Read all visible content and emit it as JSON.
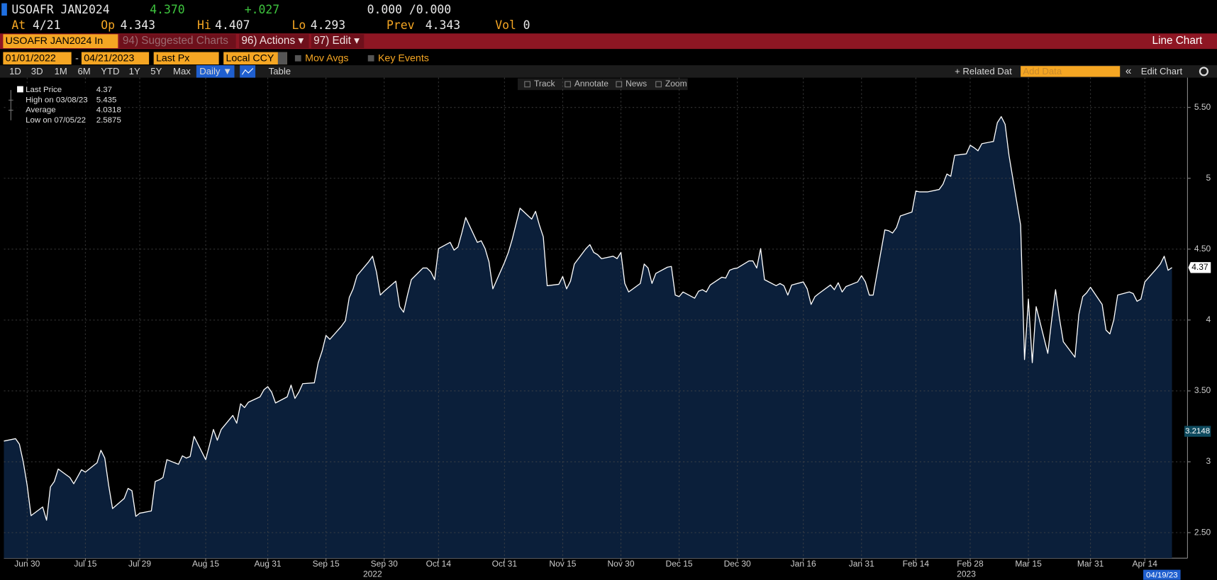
{
  "header": {
    "ticker": "USOAFR JAN2024",
    "last": "4.370",
    "change": "+.027",
    "bid_ask": "0.000 /0.000",
    "at_label": "At",
    "at": "4/21",
    "open_label": "Op",
    "open": "4.343",
    "high_label": "Hi",
    "high": "4.407",
    "low_label": "Lo",
    "low": "4.293",
    "prev_label": "Prev",
    "prev": "4.343",
    "volume_label": "Vol",
    "volume": "0"
  },
  "menu": {
    "security": "USOAFR JAN2024 In",
    "suggested": "94) Suggested Charts",
    "actions": "96) Actions ▾",
    "edit": "97) Edit ▾",
    "chart_type": "Line Chart"
  },
  "controls": {
    "start_date": "01/01/2022",
    "separator": "-",
    "end_date": "04/21/2023",
    "field": "Last Px",
    "currency": "Local CCY",
    "mov_avgs": "Mov Avgs",
    "key_events": "Key Events",
    "periods": [
      "1D",
      "3D",
      "1M",
      "6M",
      "YTD",
      "1Y",
      "5Y",
      "Max"
    ],
    "frequency": "Daily ▼",
    "table": "Table",
    "related": "+ Related Dat",
    "add_data": "Add Data",
    "edit_chart": "Edit Chart"
  },
  "tools": [
    "Track",
    "Annotate",
    "News",
    "Zoom"
  ],
  "legend": {
    "last_value": "4.37",
    "high_label": "High on 03/08/23",
    "high_value": "5.435",
    "average_label": "Average",
    "average_value": "4.0318",
    "low_label": "Low on 07/05/22",
    "low_value": "2.5875"
  },
  "chart_data": {
    "type": "line",
    "x": [
      "2022-06-24",
      "2022-06-27",
      "2022-06-28",
      "2022-06-29",
      "2022-06-30",
      "2022-07-01",
      "2022-07-04",
      "2022-07-05",
      "2022-07-06",
      "2022-07-07",
      "2022-07-08",
      "2022-07-11",
      "2022-07-12",
      "2022-07-13",
      "2022-07-14",
      "2022-07-15",
      "2022-07-18",
      "2022-07-19",
      "2022-07-20",
      "2022-07-21",
      "2022-07-22",
      "2022-07-25",
      "2022-07-26",
      "2022-07-27",
      "2022-07-28",
      "2022-07-29",
      "2022-08-01",
      "2022-08-02",
      "2022-08-03",
      "2022-08-04",
      "2022-08-05",
      "2022-08-08",
      "2022-08-09",
      "2022-08-10",
      "2022-08-11",
      "2022-08-12",
      "2022-08-15",
      "2022-08-16",
      "2022-08-17",
      "2022-08-18",
      "2022-08-19",
      "2022-08-22",
      "2022-08-23",
      "2022-08-24",
      "2022-08-25",
      "2022-08-26",
      "2022-08-29",
      "2022-08-30",
      "2022-08-31",
      "2022-09-01",
      "2022-09-02",
      "2022-09-05",
      "2022-09-06",
      "2022-09-07",
      "2022-09-08",
      "2022-09-09",
      "2022-09-12",
      "2022-09-13",
      "2022-09-14",
      "2022-09-15",
      "2022-09-16",
      "2022-09-19",
      "2022-09-20",
      "2022-09-21",
      "2022-09-22",
      "2022-09-23",
      "2022-09-26",
      "2022-09-27",
      "2022-09-28",
      "2022-09-29",
      "2022-09-30",
      "2022-10-03",
      "2022-10-04",
      "2022-10-05",
      "2022-10-06",
      "2022-10-07",
      "2022-10-10",
      "2022-10-11",
      "2022-10-12",
      "2022-10-13",
      "2022-10-14",
      "2022-10-17",
      "2022-10-18",
      "2022-10-19",
      "2022-10-20",
      "2022-10-21",
      "2022-10-24",
      "2022-10-25",
      "2022-10-26",
      "2022-10-27",
      "2022-10-28",
      "2022-10-31",
      "2022-11-01",
      "2022-11-02",
      "2022-11-03",
      "2022-11-04",
      "2022-11-07",
      "2022-11-08",
      "2022-11-09",
      "2022-11-10",
      "2022-11-11",
      "2022-11-14",
      "2022-11-15",
      "2022-11-16",
      "2022-11-17",
      "2022-11-18",
      "2022-11-21",
      "2022-11-22",
      "2022-11-23",
      "2022-11-24",
      "2022-11-25",
      "2022-11-28",
      "2022-11-29",
      "2022-11-30",
      "2022-12-01",
      "2022-12-02",
      "2022-12-05",
      "2022-12-06",
      "2022-12-07",
      "2022-12-08",
      "2022-12-09",
      "2022-12-12",
      "2022-12-13",
      "2022-12-14",
      "2022-12-15",
      "2022-12-16",
      "2022-12-19",
      "2022-12-20",
      "2022-12-21",
      "2022-12-22",
      "2022-12-23",
      "2022-12-26",
      "2022-12-27",
      "2022-12-28",
      "2022-12-29",
      "2022-12-30",
      "2023-01-02",
      "2023-01-03",
      "2023-01-04",
      "2023-01-05",
      "2023-01-06",
      "2023-01-09",
      "2023-01-10",
      "2023-01-11",
      "2023-01-12",
      "2023-01-13",
      "2023-01-16",
      "2023-01-17",
      "2023-01-18",
      "2023-01-19",
      "2023-01-20",
      "2023-01-23",
      "2023-01-24",
      "2023-01-25",
      "2023-01-26",
      "2023-01-27",
      "2023-01-30",
      "2023-01-31",
      "2023-02-01",
      "2023-02-02",
      "2023-02-03",
      "2023-02-06",
      "2023-02-07",
      "2023-02-08",
      "2023-02-09",
      "2023-02-10",
      "2023-02-13",
      "2023-02-14",
      "2023-02-15",
      "2023-02-16",
      "2023-02-17",
      "2023-02-20",
      "2023-02-21",
      "2023-02-22",
      "2023-02-23",
      "2023-02-24",
      "2023-02-27",
      "2023-02-28",
      "2023-03-01",
      "2023-03-02",
      "2023-03-03",
      "2023-03-06",
      "2023-03-07",
      "2023-03-08",
      "2023-03-09",
      "2023-03-10",
      "2023-03-13",
      "2023-03-14",
      "2023-03-15",
      "2023-03-16",
      "2023-03-17",
      "2023-03-20",
      "2023-03-21",
      "2023-03-22",
      "2023-03-23",
      "2023-03-24",
      "2023-03-27",
      "2023-03-28",
      "2023-03-29",
      "2023-03-30",
      "2023-03-31",
      "2023-04-03",
      "2023-04-04",
      "2023-04-05",
      "2023-04-06",
      "2023-04-07",
      "2023-04-10",
      "2023-04-11",
      "2023-04-12",
      "2023-04-13",
      "2023-04-14",
      "2023-04-17",
      "2023-04-18",
      "2023-04-19",
      "2023-04-20",
      "2023-04-21"
    ],
    "series": [
      {
        "name": "Last Price",
        "color": "#ffffff",
        "fill": "#0b1f3a",
        "values": [
          3.146,
          3.163,
          3.124,
          2.998,
          2.834,
          2.62,
          2.681,
          2.588,
          2.823,
          2.861,
          2.949,
          2.889,
          2.845,
          2.894,
          2.944,
          2.927,
          2.993,
          3.081,
          3.026,
          2.834,
          2.67,
          2.741,
          2.812,
          2.796,
          2.615,
          2.637,
          2.653,
          2.861,
          2.872,
          2.889,
          3.015,
          2.982,
          3.042,
          3.026,
          3.037,
          3.179,
          3.015,
          3.119,
          3.228,
          3.152,
          3.228,
          3.327,
          3.272,
          3.409,
          3.382,
          3.42,
          3.458,
          3.508,
          3.53,
          3.491,
          3.415,
          3.458,
          3.541,
          3.447,
          3.491,
          3.551,
          3.557,
          3.699,
          3.781,
          3.891,
          3.864,
          3.957,
          3.995,
          4.159,
          4.22,
          4.313,
          4.411,
          4.45,
          4.34,
          4.176,
          4.203,
          4.274,
          4.094,
          4.055,
          4.176,
          4.285,
          4.367,
          4.367,
          4.34,
          4.285,
          4.504,
          4.548,
          4.493,
          4.515,
          4.614,
          4.723,
          4.548,
          4.559,
          4.504,
          4.411,
          4.22,
          4.406,
          4.477,
          4.57,
          4.68,
          4.789,
          4.712,
          4.767,
          4.669,
          4.587,
          4.242,
          4.252,
          4.307,
          4.22,
          4.274,
          4.395,
          4.504,
          4.532,
          4.477,
          4.461,
          4.433,
          4.45,
          4.433,
          4.477,
          4.258,
          4.198,
          4.258,
          4.395,
          4.367,
          4.258,
          4.329,
          4.373,
          4.378,
          4.176,
          4.165,
          4.198,
          4.154,
          4.203,
          4.214,
          4.198,
          4.247,
          4.302,
          4.296,
          4.351,
          4.362,
          4.367,
          4.417,
          4.417,
          4.367,
          4.504,
          4.285,
          4.242,
          4.258,
          4.242,
          4.176,
          4.247,
          4.269,
          4.22,
          4.11,
          4.165,
          4.187,
          4.247,
          4.214,
          4.263,
          4.198,
          4.236,
          4.269,
          4.313,
          4.269,
          4.176,
          4.176,
          4.636,
          4.63,
          4.614,
          4.652,
          4.734,
          4.762,
          4.91,
          4.904,
          4.904,
          4.904,
          4.921,
          4.959,
          5.03,
          5.014,
          5.162,
          5.172,
          5.233,
          5.216,
          5.194,
          5.244,
          5.26,
          5.392,
          5.435,
          5.381,
          5.162,
          4.669,
          3.721,
          4.148,
          3.699,
          4.094,
          3.765,
          4.001,
          4.214,
          4.012,
          3.847,
          3.738,
          4.039,
          4.165,
          4.192,
          4.231,
          4.11,
          3.929,
          3.902,
          4.001,
          4.176,
          4.198,
          4.187,
          4.132,
          4.148,
          4.269,
          4.362,
          4.395,
          4.45,
          4.351,
          4.37
        ]
      }
    ],
    "xlim": [
      "2022-06-24",
      "2023-04-25"
    ],
    "xticks": [
      {
        "value": "2022-06-30",
        "label": "Jun 30"
      },
      {
        "value": "2022-07-15",
        "label": "Jul 15"
      },
      {
        "value": "2022-07-29",
        "label": "Jul 29"
      },
      {
        "value": "2022-08-15",
        "label": "Aug 15"
      },
      {
        "value": "2022-08-31",
        "label": "Aug 31"
      },
      {
        "value": "2022-09-15",
        "label": "Sep 15"
      },
      {
        "value": "2022-09-30",
        "label": "Sep 30"
      },
      {
        "value": "2022-10-14",
        "label": "Oct 14"
      },
      {
        "value": "2022-10-31",
        "label": "Oct 31"
      },
      {
        "value": "2022-11-15",
        "label": "Nov 15"
      },
      {
        "value": "2022-11-30",
        "label": "Nov 30"
      },
      {
        "value": "2022-12-15",
        "label": "Dec 15"
      },
      {
        "value": "2022-12-30",
        "label": "Dec 30"
      },
      {
        "value": "2023-01-16",
        "label": "Jan 16"
      },
      {
        "value": "2023-01-31",
        "label": "Jan 31"
      },
      {
        "value": "2023-02-14",
        "label": "Feb 14"
      },
      {
        "value": "2023-02-28",
        "label": "Feb 28"
      },
      {
        "value": "2023-03-15",
        "label": "Mar 15"
      },
      {
        "value": "2023-03-31",
        "label": "Mar 31"
      },
      {
        "value": "2023-04-14",
        "label": "Apr 14"
      }
    ],
    "year_ticks": [
      {
        "value": "2022-09-27",
        "label": "2022"
      },
      {
        "value": "2023-02-27",
        "label": "2023"
      }
    ],
    "ylim": [
      2.32,
      5.71
    ],
    "yticks": [
      {
        "value": 2.5,
        "label": "2.50"
      },
      3,
      {
        "value": 3.5,
        "label": "3.50"
      },
      4,
      {
        "value": 4.5,
        "label": "4.50"
      },
      5,
      {
        "value": 5.5,
        "label": "5.50"
      }
    ],
    "grid": true,
    "last_value_label": 4.37,
    "reference_value": 3.2148,
    "end_date_label": "04/19/23"
  }
}
